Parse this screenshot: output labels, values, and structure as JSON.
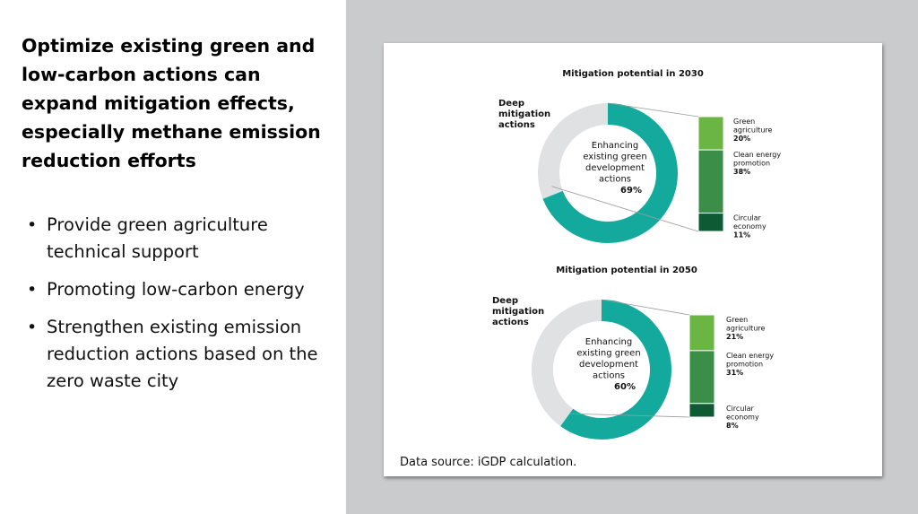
{
  "headline": "Optimize existing green and low-carbon actions can expand mitigation effects, especially methane emission reduction efforts",
  "bullets": [
    "Provide green agriculture technical support",
    "Promoting low-carbon energy",
    "Strengthen existing emission reduction actions based on the zero waste city"
  ],
  "source": "Data source: iGDP calculation.",
  "colors": {
    "teal": "#13aa9d",
    "gray": "#e0e1e3",
    "green_light": "#6ab544",
    "green_mid": "#3a8e48",
    "green_dark": "#0d5a34",
    "slide_bg": "#cacbcd"
  },
  "chart_data": [
    {
      "type": "pie",
      "title": "Mitigation potential in 2030",
      "slices": [
        {
          "label": "Enhancing existing green development actions",
          "value": 69,
          "display": "69%"
        },
        {
          "label": "Deep mitigation actions",
          "value": 31
        }
      ],
      "breakdown": [
        {
          "label": "Green agriculture",
          "value": 20,
          "display": "20%"
        },
        {
          "label": "Clean energy promotion",
          "value": 38,
          "display": "38%"
        },
        {
          "label": "Circular economy",
          "value": 11,
          "display": "11%"
        }
      ]
    },
    {
      "type": "pie",
      "title": "Mitigation potential in 2050",
      "slices": [
        {
          "label": "Enhancing existing green development actions",
          "value": 60,
          "display": "60%"
        },
        {
          "label": "Deep mitigation actions",
          "value": 40
        }
      ],
      "breakdown": [
        {
          "label": "Green agriculture",
          "value": 21,
          "display": "21%"
        },
        {
          "label": "Clean energy promotion",
          "value": 31,
          "display": "31%"
        },
        {
          "label": "Circular economy",
          "value": 8,
          "display": "8%"
        }
      ]
    }
  ]
}
